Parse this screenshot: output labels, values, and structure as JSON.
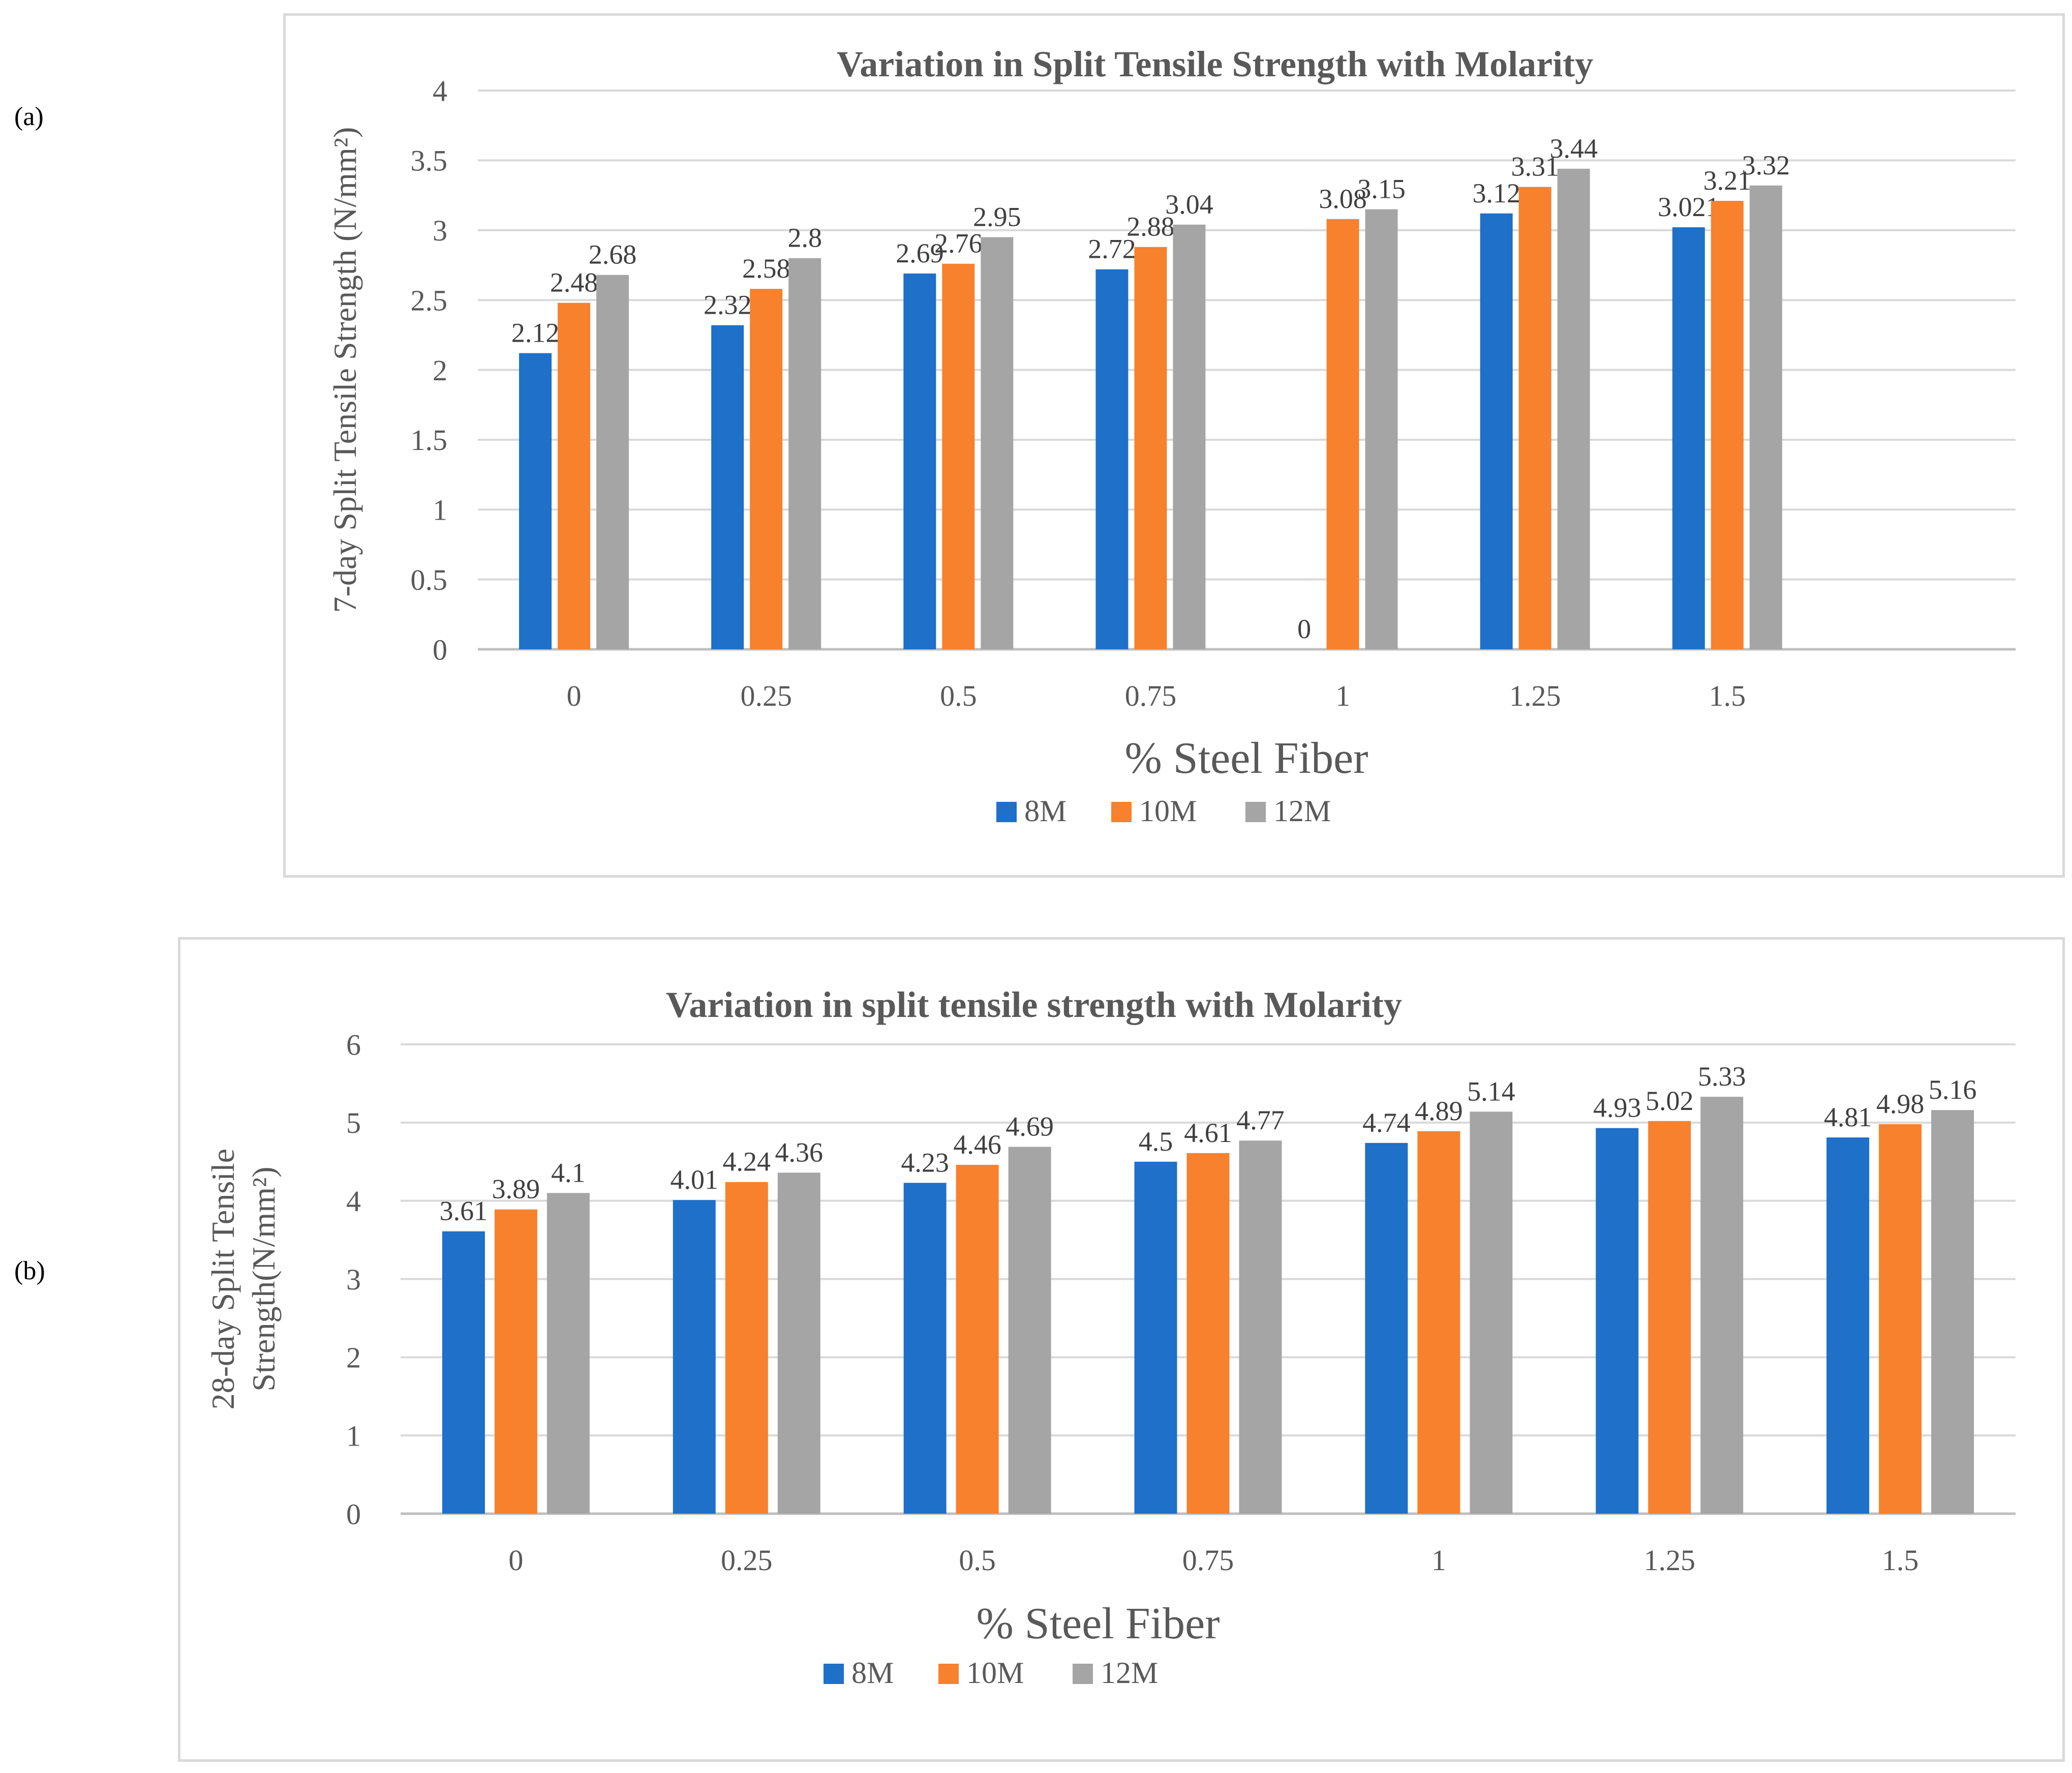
{
  "panel_labels": [
    "(a)",
    "(b)"
  ],
  "chart_data": [
    {
      "type": "bar",
      "title": "Variation in Split Tensile Strength with Molarity",
      "xlabel": "% Steel Fiber",
      "ylabel": "7-day Split Tensile Strength (N/mm²)",
      "categories": [
        "0",
        "0.25",
        "0.5",
        "0.75",
        "1",
        "1.25",
        "1.5"
      ],
      "ylim": [
        0,
        4
      ],
      "yticks": [
        "0",
        "0.5",
        "1",
        "1.5",
        "2",
        "2.5",
        "3",
        "3.5",
        "4"
      ],
      "grid": true,
      "legend": "bottom",
      "series": [
        {
          "name": "8M",
          "color": "#1f70c8",
          "values": [
            2.12,
            2.32,
            2.69,
            2.72,
            0,
            3.12,
            3.021
          ],
          "labels": [
            "2.12",
            "2.32",
            "2.69",
            "2.72",
            "0",
            "3.12",
            "3.021"
          ]
        },
        {
          "name": "10M",
          "color": "#f7812d",
          "values": [
            2.48,
            2.58,
            2.76,
            2.88,
            3.08,
            3.31,
            3.21
          ],
          "labels": [
            "2.48",
            "2.58",
            "2.76",
            "2.88",
            "3.08",
            "3.31",
            "3.21"
          ]
        },
        {
          "name": "12M",
          "color": "#a5a5a5",
          "values": [
            2.68,
            2.8,
            2.95,
            3.04,
            3.15,
            3.44,
            3.32
          ],
          "labels": [
            "2.68",
            "2.8",
            "2.95",
            "3.04",
            "3.15",
            "3.44",
            "3.32"
          ]
        }
      ]
    },
    {
      "type": "bar",
      "title": "Variation in split tensile strength with Molarity",
      "xlabel": "% Steel Fiber",
      "ylabel": "28-day Split Tensile Strength(N/mm²)",
      "ylabel_lines": [
        "28-day Split Tensile",
        "Strength(N/mm²)"
      ],
      "categories": [
        "0",
        "0.25",
        "0.5",
        "0.75",
        "1",
        "1.25",
        "1.5"
      ],
      "ylim": [
        0,
        6
      ],
      "yticks": [
        "0",
        "1",
        "2",
        "3",
        "4",
        "5",
        "6"
      ],
      "grid": true,
      "legend": "bottom",
      "series": [
        {
          "name": "8M",
          "color": "#1f70c8",
          "values": [
            3.61,
            4.01,
            4.23,
            4.5,
            4.74,
            4.93,
            4.81
          ],
          "labels": [
            "3.61",
            "4.01",
            "4.23",
            "4.5",
            "4.74",
            "4.93",
            "4.81"
          ]
        },
        {
          "name": "10M",
          "color": "#f7812d",
          "values": [
            3.89,
            4.24,
            4.46,
            4.61,
            4.89,
            5.02,
            4.98
          ],
          "labels": [
            "3.89",
            "4.24",
            "4.46",
            "4.61",
            "4.89",
            "5.02",
            "4.98"
          ]
        },
        {
          "name": "12M",
          "color": "#a5a5a5",
          "values": [
            4.1,
            4.36,
            4.69,
            4.77,
            5.14,
            5.33,
            5.16
          ],
          "labels": [
            "4.1",
            "4.36",
            "4.69",
            "4.77",
            "5.14",
            "5.33",
            "5.16"
          ]
        }
      ]
    }
  ]
}
